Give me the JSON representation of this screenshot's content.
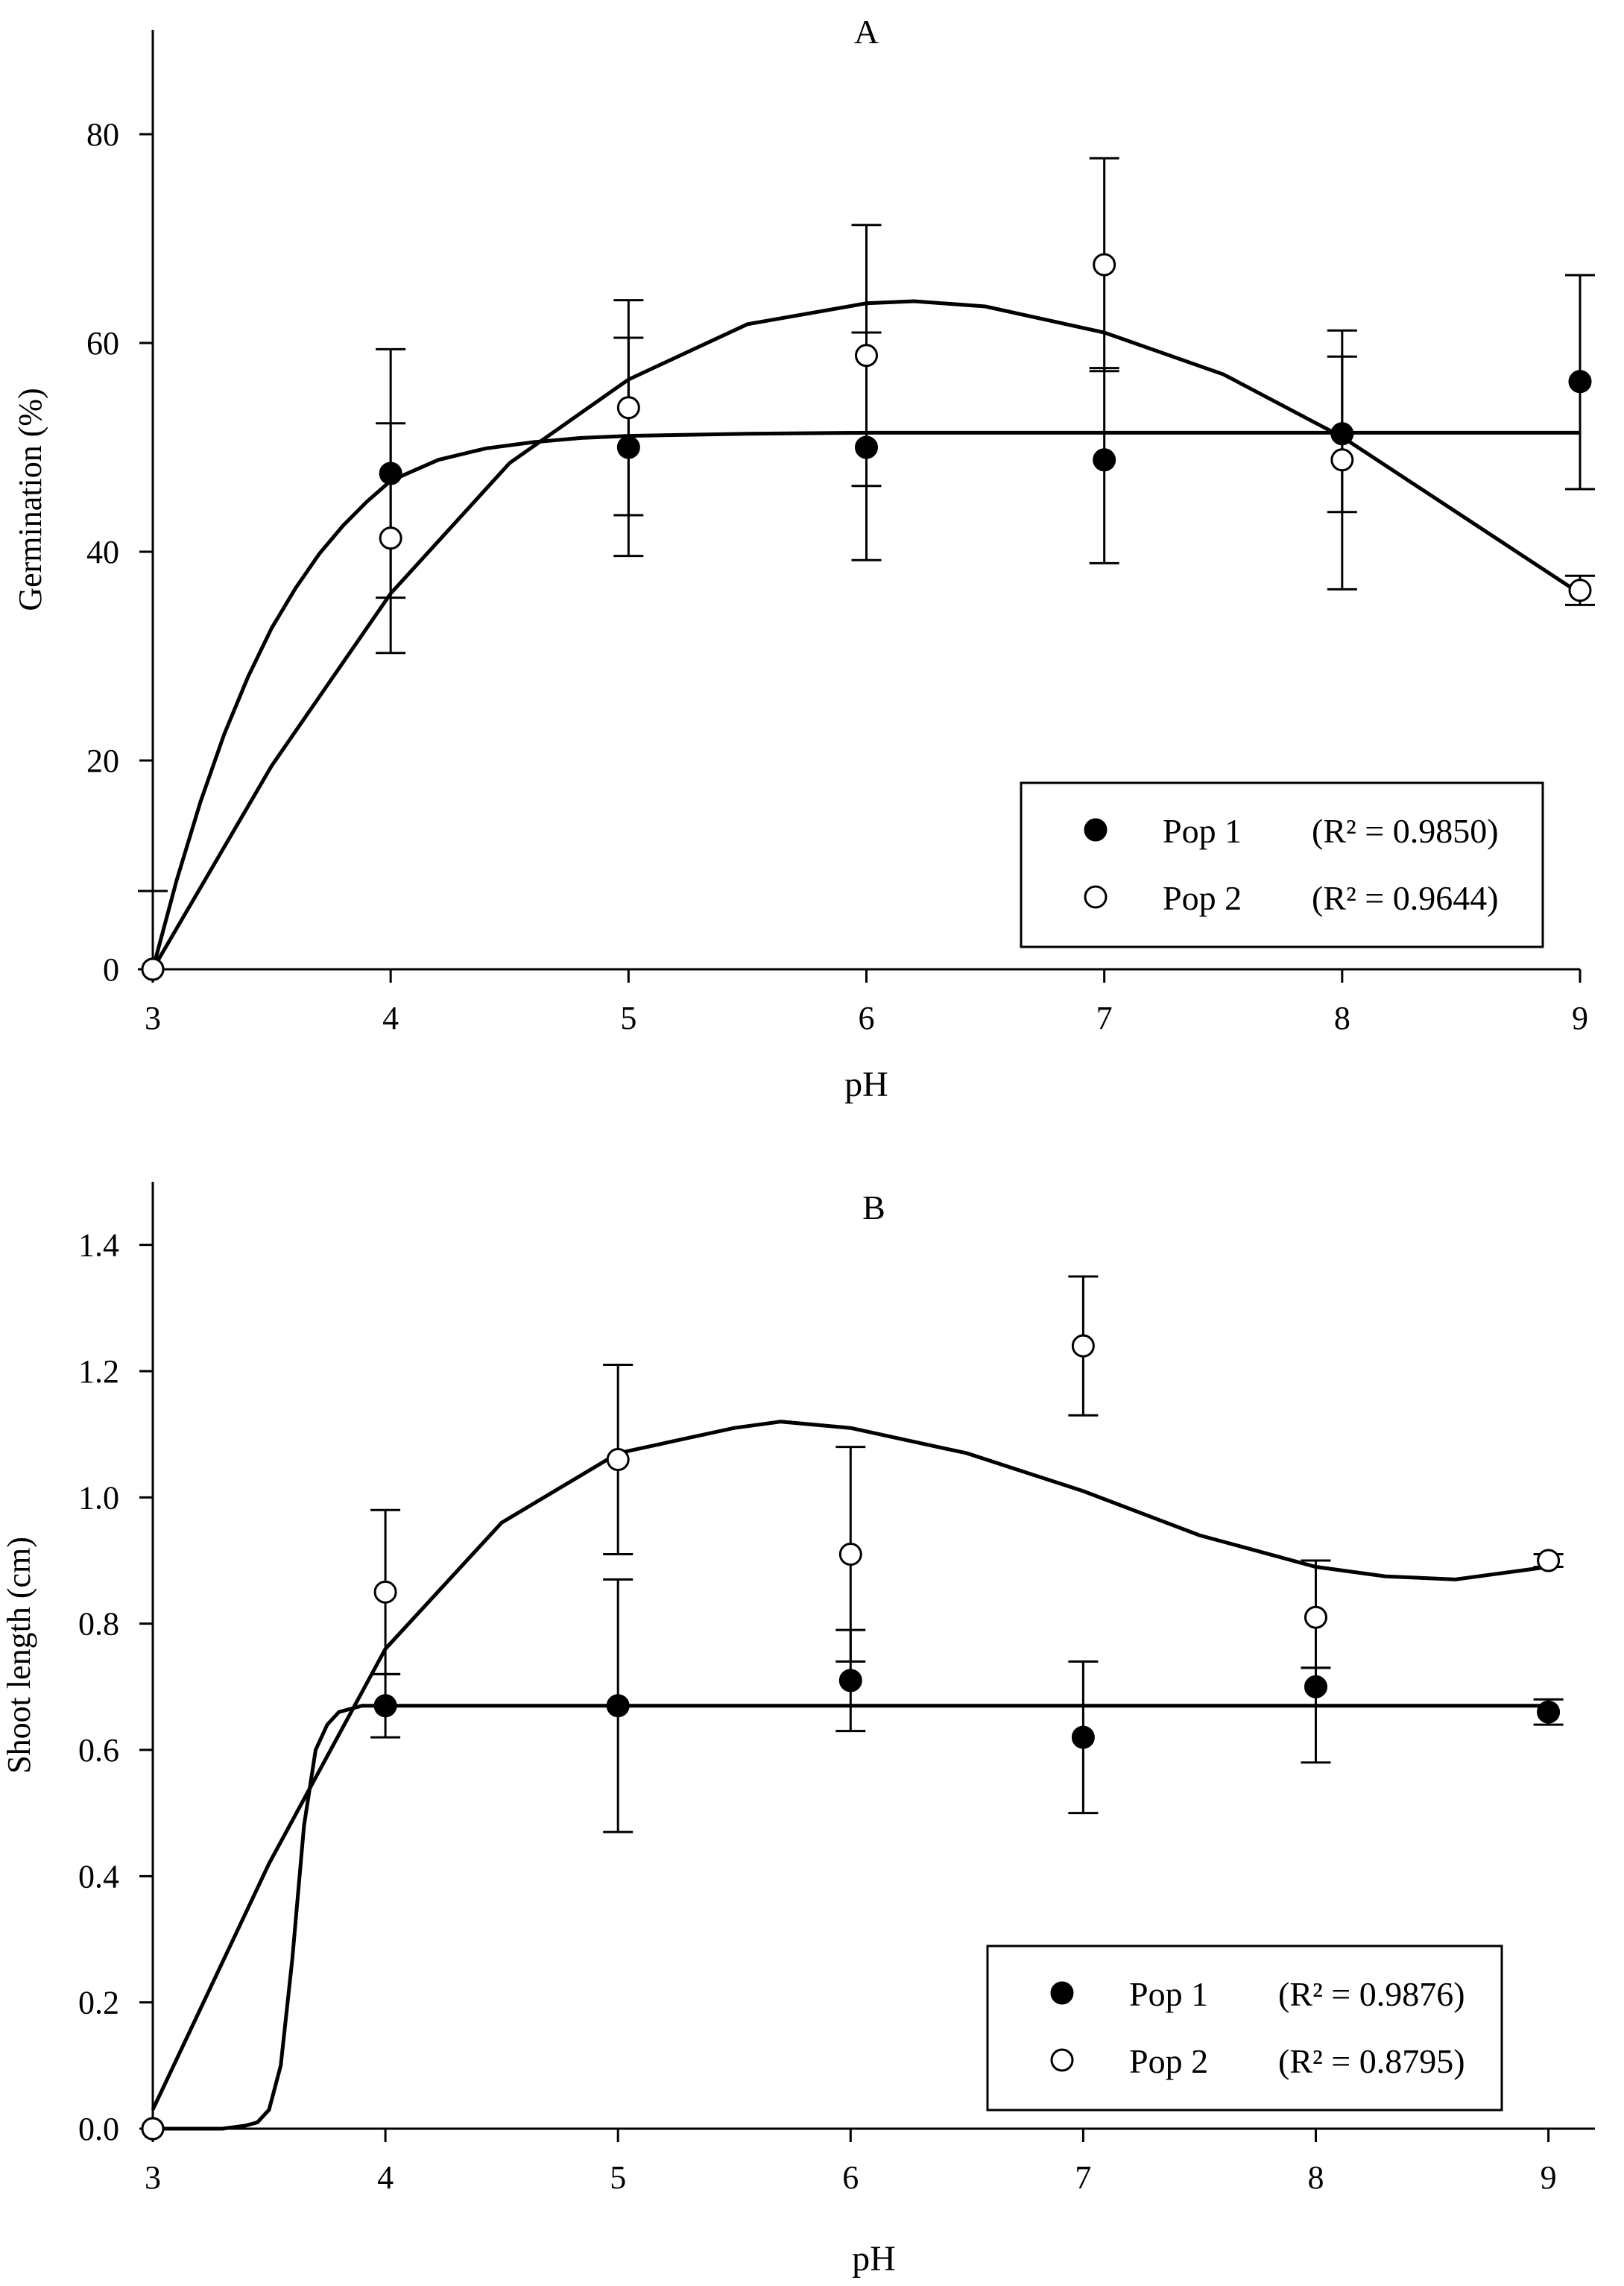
{
  "chart_data": [
    {
      "type": "scatter",
      "title": "A",
      "xlabel": "pH",
      "ylabel": "Germination (%)",
      "xlim": [
        3,
        9
      ],
      "ylim": [
        0,
        90
      ],
      "x_ticks": [
        3,
        4,
        5,
        6,
        7,
        8,
        9
      ],
      "y_ticks": [
        0,
        20,
        40,
        60,
        80
      ],
      "tick_decimals": 0,
      "legend_position": "bottom-right",
      "series": [
        {
          "name": "Pop 1",
          "marker": "filled",
          "r2_text": "(R² = 0.9850)",
          "x": [
            3,
            4,
            5,
            6,
            7,
            8,
            9
          ],
          "values": [
            0,
            47.5,
            50,
            50,
            48.8,
            51.3,
            56.3
          ],
          "err_high": [
            7.5,
            59.4,
            60.5,
            61,
            57.6,
            61.2,
            66.5
          ],
          "err_low": [
            0,
            35.6,
            39.6,
            39.2,
            38.9,
            36.4,
            46
          ]
        },
        {
          "name": "Pop 2",
          "marker": "open",
          "r2_text": "(R² = 0.9644)",
          "x": [
            3,
            4,
            5,
            6,
            7,
            8,
            9
          ],
          "values": [
            0,
            41.3,
            53.8,
            58.8,
            67.5,
            48.8,
            36.3
          ],
          "err_high": [
            0,
            52.3,
            64.1,
            71.3,
            77.7,
            58.7,
            37.7
          ],
          "err_low": [
            0,
            30.3,
            43.5,
            46.3,
            57.3,
            43.8,
            34.9
          ]
        }
      ],
      "fits": [
        {
          "series": "Pop 1",
          "x": [
            3,
            3.1,
            3.2,
            3.3,
            3.4,
            3.5,
            3.6,
            3.7,
            3.8,
            3.9,
            4,
            4.2,
            4.4,
            4.6,
            4.8,
            5,
            5.5,
            6,
            7,
            8,
            9
          ],
          "y": [
            0,
            8.5,
            16,
            22.5,
            28,
            32.7,
            36.5,
            39.8,
            42.5,
            44.8,
            46.8,
            48.8,
            49.9,
            50.5,
            50.9,
            51.1,
            51.3,
            51.4,
            51.4,
            51.4,
            51.4
          ]
        },
        {
          "series": "Pop 2",
          "x": [
            3,
            3.5,
            4,
            4.5,
            5,
            5.5,
            6,
            6.2,
            6.5,
            7,
            7.5,
            8,
            8.5,
            9
          ],
          "y": [
            0,
            19.5,
            36,
            48.5,
            56.5,
            61.8,
            63.8,
            64,
            63.5,
            61,
            57,
            51,
            43.5,
            36
          ]
        }
      ]
    },
    {
      "type": "scatter",
      "title": "B",
      "xlabel": "pH",
      "ylabel": "Shoot length (cm)",
      "xlim": [
        3,
        9.2
      ],
      "ylim": [
        0,
        1.5
      ],
      "x_ticks": [
        3,
        4,
        5,
        6,
        7,
        8,
        9
      ],
      "y_ticks": [
        0,
        0.2,
        0.4,
        0.6,
        0.8,
        1.0,
        1.2,
        1.4
      ],
      "tick_decimals": 1,
      "legend_position": "bottom-right",
      "series": [
        {
          "name": "Pop 1",
          "marker": "filled",
          "r2_text": "(R² = 0.9876)",
          "x": [
            3,
            4,
            5,
            6,
            7,
            8,
            9
          ],
          "values": [
            0,
            0.67,
            0.67,
            0.71,
            0.62,
            0.7,
            0.66
          ],
          "err_high": [
            0,
            0.72,
            0.87,
            0.79,
            0.74,
            0.73,
            0.68
          ],
          "err_low": [
            0,
            0.62,
            0.47,
            0.63,
            0.5,
            0.58,
            0.64
          ]
        },
        {
          "name": "Pop 2",
          "marker": "open",
          "r2_text": "(R² = 0.8795)",
          "x": [
            3,
            4,
            5,
            6,
            7,
            8,
            9
          ],
          "values": [
            0,
            0.85,
            1.06,
            0.91,
            1.24,
            0.81,
            0.9
          ],
          "err_high": [
            0,
            0.98,
            1.21,
            1.08,
            1.35,
            0.9,
            0.91
          ],
          "err_low": [
            0,
            0.72,
            0.91,
            0.74,
            1.13,
            0.73,
            0.89
          ]
        }
      ],
      "fits": [
        {
          "series": "Pop 1",
          "x": [
            3,
            3.3,
            3.4,
            3.45,
            3.5,
            3.55,
            3.6,
            3.65,
            3.7,
            3.75,
            3.8,
            3.9,
            4,
            5,
            6,
            7,
            8,
            9
          ],
          "y": [
            0,
            0,
            0.005,
            0.01,
            0.03,
            0.1,
            0.27,
            0.48,
            0.6,
            0.64,
            0.66,
            0.67,
            0.67,
            0.67,
            0.67,
            0.67,
            0.67,
            0.67
          ]
        },
        {
          "series": "Pop 2",
          "x": [
            3,
            3.5,
            4,
            4.5,
            5,
            5.5,
            5.7,
            6,
            6.5,
            7,
            7.5,
            8,
            8.3,
            8.6,
            9
          ],
          "y": [
            0.03,
            0.42,
            0.76,
            0.96,
            1.07,
            1.11,
            1.12,
            1.11,
            1.07,
            1.01,
            0.94,
            0.89,
            0.875,
            0.87,
            0.89
          ]
        }
      ]
    }
  ]
}
